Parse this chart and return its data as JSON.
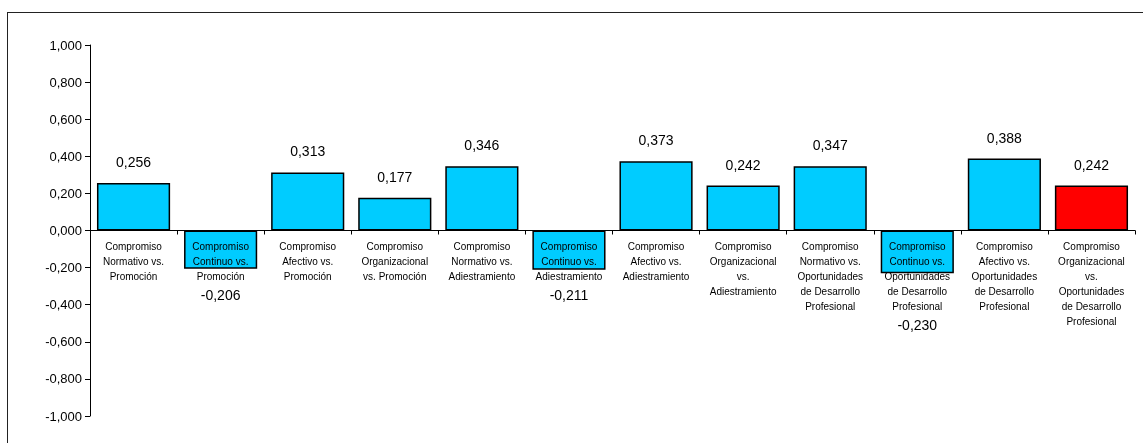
{
  "chart_data": {
    "type": "bar",
    "categories": [
      "Compromiso Normativo vs. Promoción",
      "Compromiso Continuo vs. Promoción",
      "Compromiso Afectivo vs. Promoción",
      "Compromiso Organizacional vs. Promoción",
      "Compromiso Normativo vs. Adiestramiento",
      "Compromiso Continuo vs. Adiestramiento",
      "Compromiso Afectivo vs. Adiestramiento",
      "Compromiso Organizacional vs. Adiestramiento",
      "Compromiso Normativo vs. Oportunidades de Desarrollo Profesional",
      "Compromiso Continuo vs. Oportunidades de Desarrollo Profesional",
      "Compromiso Afectivo vs. Oportunidades de Desarrollo Profesional",
      "Compromiso Organizacional vs. Oportunidades de Desarrollo Profesional"
    ],
    "values": [
      0.256,
      -0.206,
      0.313,
      0.177,
      0.346,
      -0.211,
      0.373,
      0.242,
      0.347,
      -0.23,
      0.388,
      0.242
    ],
    "colors": [
      "#00ccff",
      "#00ccff",
      "#00ccff",
      "#00ccff",
      "#00ccff",
      "#00ccff",
      "#00ccff",
      "#00ccff",
      "#00ccff",
      "#00ccff",
      "#00ccff",
      "#ff0000"
    ],
    "value_labels": [
      "0,256",
      "-0,206",
      "0,313",
      "0,177",
      "0,346",
      "-0,211",
      "0,373",
      "0,242",
      "0,347",
      "-0,230",
      "0,388",
      "0,242"
    ],
    "ylim": [
      -1,
      1
    ],
    "yticks": [
      {
        "value": -1,
        "label": "-1,000"
      },
      {
        "value": -0.8,
        "label": "-0,800"
      },
      {
        "value": -0.6,
        "label": "-0,600"
      },
      {
        "value": -0.4,
        "label": "-0,400"
      },
      {
        "value": -0.2,
        "label": "-0,200"
      },
      {
        "value": 0,
        "label": "0,000"
      },
      {
        "value": 0.2,
        "label": "0,200"
      },
      {
        "value": 0.4,
        "label": "0,400"
      },
      {
        "value": 0.6,
        "label": "0,600"
      },
      {
        "value": 0.8,
        "label": "0,800"
      },
      {
        "value": 1,
        "label": "1,000"
      }
    ]
  }
}
